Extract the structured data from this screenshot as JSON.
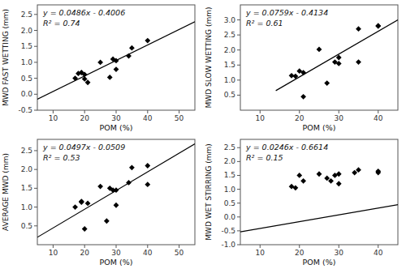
{
  "chart_data": [
    {
      "type": "scatter",
      "xlabel": "POM (%)",
      "ylabel": "MWD FAST WETTING (mm)",
      "annotations": [
        "y = 0.0486x - 0.4006",
        "R² = 0.74"
      ],
      "xlim": [
        5,
        55
      ],
      "ylim": [
        -0.5,
        2.8
      ],
      "xticks": [
        10,
        20,
        30,
        40,
        50
      ],
      "yticks": [
        -0.5,
        {
          "value": 0,
          "label": "0.0"
        },
        0.5,
        {
          "value": 1,
          "label": "1.0"
        },
        1.5,
        {
          "value": 2,
          "label": "2.0"
        },
        2.5
      ],
      "grid": false,
      "series": [
        {
          "type": "scatter",
          "marker": "diamond",
          "color": "black",
          "x": [
            17,
            18,
            19,
            20,
            20,
            21,
            25,
            28,
            29,
            30,
            30,
            34,
            35,
            40
          ],
          "values": [
            0.5,
            0.65,
            0.68,
            0.48,
            0.62,
            0.37,
            1.0,
            0.53,
            1.1,
            1.05,
            0.78,
            1.2,
            1.45,
            1.68
          ]
        },
        {
          "type": "line",
          "color": "black",
          "x": [
            5,
            55
          ],
          "values": [
            -0.1576,
            2.2724
          ]
        }
      ]
    },
    {
      "type": "scatter",
      "xlabel": "POM (%)",
      "ylabel": "MWD SLOW WETTING (mm)",
      "annotations": [
        "y = 0.0759x - 0.4134",
        "R² = 0.61"
      ],
      "xlim": [
        5,
        45
      ],
      "ylim": [
        0,
        3.5
      ],
      "xticks": [
        10,
        20,
        30,
        40
      ],
      "yticks": [
        0.5,
        {
          "value": 1,
          "label": "1.0"
        },
        1.5,
        {
          "value": 2,
          "label": "2.0"
        },
        2.5,
        {
          "value": 3,
          "label": "3.0"
        }
      ],
      "grid": false,
      "series": [
        {
          "type": "scatter",
          "marker": "diamond",
          "color": "black",
          "x": [
            18,
            19,
            20,
            21,
            25,
            21,
            27,
            29,
            30,
            30,
            35,
            35,
            40,
            40
          ],
          "values": [
            1.15,
            1.13,
            1.3,
            1.25,
            2.02,
            0.45,
            0.9,
            1.6,
            1.75,
            1.55,
            2.7,
            1.6,
            2.8,
            2.8
          ]
        },
        {
          "type": "line",
          "color": "black",
          "x": [
            14,
            45
          ],
          "values": [
            0.6492,
            3.0021
          ]
        }
      ]
    },
    {
      "type": "scatter",
      "xlabel": "POM (%)",
      "ylabel": "AVERAGE MWD (mm)",
      "annotations": [
        "y = 0.0497x - 0.0509",
        "R² = 0.53"
      ],
      "xlim": [
        5,
        55
      ],
      "ylim": [
        0,
        2.8
      ],
      "xticks": [
        10,
        20,
        30,
        40,
        50
      ],
      "yticks": [
        0.5,
        {
          "value": 1,
          "label": "1.0"
        },
        1.5,
        {
          "value": 2,
          "label": "2.0"
        },
        2.5
      ],
      "grid": false,
      "series": [
        {
          "type": "scatter",
          "marker": "diamond",
          "color": "black",
          "x": [
            17,
            19,
            19,
            20,
            21,
            25,
            27,
            28,
            29,
            30,
            30,
            34,
            35,
            40,
            40
          ],
          "values": [
            1.0,
            1.13,
            1.15,
            0.42,
            1.1,
            1.55,
            0.63,
            1.5,
            1.45,
            1.45,
            1.05,
            1.65,
            2.05,
            2.1,
            1.6
          ]
        },
        {
          "type": "line",
          "color": "black",
          "x": [
            5,
            55
          ],
          "values": [
            0.1976,
            2.6826
          ]
        }
      ]
    },
    {
      "type": "scatter",
      "xlabel": "POM (%)",
      "ylabel": "MWD WET STIRRING (mm)",
      "annotations": [
        "y = 0.0246x - 0.6614",
        "R² = 0.15"
      ],
      "xlim": [
        5,
        45
      ],
      "ylim": [
        -1.0,
        2.8
      ],
      "xticks": [
        10,
        20,
        30,
        40
      ],
      "yticks": [
        {
          "value": -1,
          "label": "-1.0"
        },
        -0.5,
        {
          "value": 0,
          "label": "0.0"
        },
        0.5,
        {
          "value": 1,
          "label": "1.0"
        },
        1.5,
        {
          "value": 2,
          "label": "2.0"
        },
        2.5
      ],
      "grid": false,
      "series": [
        {
          "type": "scatter",
          "marker": "diamond",
          "color": "black",
          "x": [
            18,
            19,
            20,
            21,
            25,
            27,
            28,
            29,
            30,
            30,
            34,
            35,
            40,
            40
          ],
          "values": [
            1.1,
            1.05,
            1.5,
            1.3,
            1.55,
            1.4,
            1.3,
            1.5,
            1.55,
            1.2,
            1.6,
            1.7,
            1.6,
            1.65
          ]
        },
        {
          "type": "line",
          "color": "black",
          "x": [
            5,
            45
          ],
          "values": [
            -0.5384,
            0.4456
          ]
        }
      ]
    }
  ]
}
